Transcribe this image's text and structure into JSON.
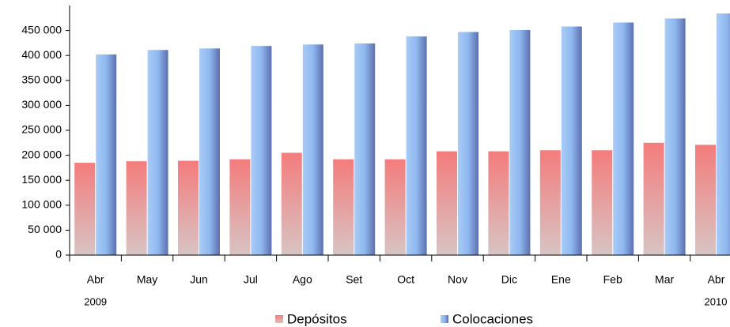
{
  "chart_data": {
    "type": "bar",
    "categories": [
      "Abr",
      "May",
      "Jun",
      "Jul",
      "Ago",
      "Set",
      "Oct",
      "Nov",
      "Dic",
      "Ene",
      "Feb",
      "Mar",
      "Abr"
    ],
    "year_labels": [
      {
        "index": 0,
        "label": "2009"
      },
      {
        "index": 12,
        "label": "2010"
      }
    ],
    "series": [
      {
        "name": "Depósitos",
        "color": "#f47c7c",
        "values": [
          185000,
          188000,
          189000,
          192000,
          205000,
          192000,
          192000,
          208000,
          208000,
          210000,
          210000,
          225000,
          221000
        ]
      },
      {
        "name": "Colocaciones",
        "color": "#8fb8f0",
        "values": [
          402000,
          411000,
          414000,
          419000,
          422000,
          424000,
          438000,
          447000,
          451000,
          458000,
          466000,
          474000,
          484000
        ]
      }
    ],
    "ylim": [
      0,
      500000
    ],
    "yticks": [
      {
        "value": 0,
        "label": "0"
      },
      {
        "value": 50000,
        "label": "50 000"
      },
      {
        "value": 100000,
        "label": "100 000"
      },
      {
        "value": 150000,
        "label": "150 000"
      },
      {
        "value": 200000,
        "label": "200 000"
      },
      {
        "value": 250000,
        "label": "250 000"
      },
      {
        "value": 300000,
        "label": "300 000"
      },
      {
        "value": 350000,
        "label": "350 000"
      },
      {
        "value": 400000,
        "label": "400 000"
      },
      {
        "value": 450000,
        "label": "450 000"
      }
    ],
    "legend": "bottom"
  }
}
